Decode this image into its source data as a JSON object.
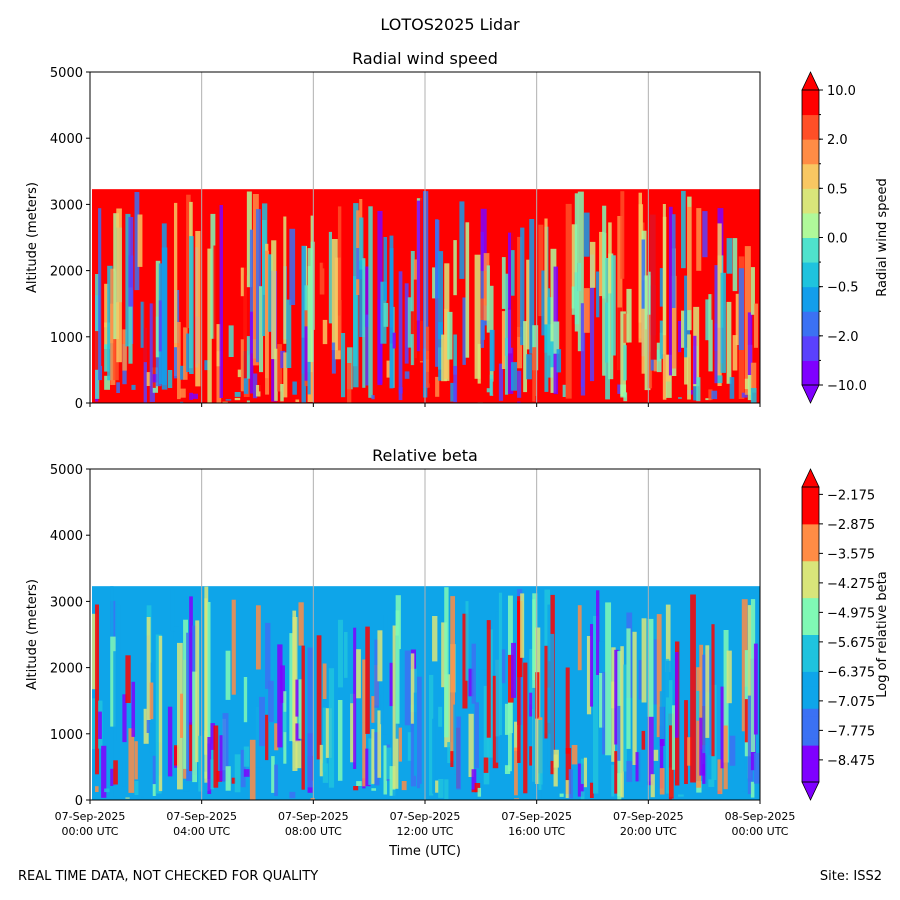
{
  "suptitle": "LOTOS2025 Lidar",
  "footer": {
    "left": "REAL TIME DATA, NOT CHECKED FOR QUALITY",
    "right": "Site: ISS2"
  },
  "chart_data": [
    {
      "type": "heatmap",
      "title": "Radial wind speed",
      "xlabel": "",
      "ylabel": "Altitude (meters)",
      "ylim": [
        0,
        5000
      ],
      "yticks": [
        "0",
        "1000",
        "2000",
        "3000",
        "4000",
        "5000"
      ],
      "xlim_hours": [
        0,
        24
      ],
      "data_top_altitude": 3230,
      "colorbar": {
        "label": "Radial wind speed",
        "levels": [
          -10.0,
          -5.0,
          -2.0,
          -1.0,
          -0.5,
          -0.25,
          0.0,
          0.25,
          0.5,
          1.0,
          2.0,
          5.0,
          10.0
        ],
        "tick_labels": [
          "−10.0",
          "−2.0",
          "−0.5",
          "0.0",
          "0.5",
          "2.0",
          "10.0"
        ],
        "tick_levels": [
          -10.0,
          -2.0,
          -0.5,
          0.0,
          0.5,
          2.0,
          10.0
        ],
        "extend": "both"
      },
      "colors": [
        "#7f00ff",
        "#5a41fd",
        "#3b71f3",
        "#139eeb",
        "#1fc3de",
        "#4fe2cd",
        "#80f9b5",
        "#b0f99a",
        "#d9e57a",
        "#f8c762",
        "#ff8c45",
        "#ff4f27",
        "#ff0000"
      ],
      "dominant_color": "#ff0000"
    },
    {
      "type": "heatmap",
      "title": "Relative beta",
      "xlabel": "Time (UTC)",
      "ylabel": "Altitude (meters)",
      "ylim": [
        0,
        5000
      ],
      "yticks": [
        "0",
        "1000",
        "2000",
        "3000",
        "4000",
        "5000"
      ],
      "xlim_hours": [
        0,
        24
      ],
      "xticks": [
        {
          "hour": 0,
          "date": "07-Sep-2025",
          "time": "00:00 UTC"
        },
        {
          "hour": 4,
          "date": "07-Sep-2025",
          "time": "04:00 UTC"
        },
        {
          "hour": 8,
          "date": "07-Sep-2025",
          "time": "08:00 UTC"
        },
        {
          "hour": 12,
          "date": "07-Sep-2025",
          "time": "12:00 UTC"
        },
        {
          "hour": 16,
          "date": "07-Sep-2025",
          "time": "16:00 UTC"
        },
        {
          "hour": 20,
          "date": "07-Sep-2025",
          "time": "20:00 UTC"
        },
        {
          "hour": 24,
          "date": "08-Sep-2025",
          "time": "00:00 UTC"
        }
      ],
      "data_top_altitude": 3230,
      "colorbar": {
        "label": "Log of relative beta",
        "range": [
          -9.0,
          -2.0
        ],
        "tick_labels": [
          "−2.175",
          "−2.875",
          "−3.575",
          "−4.275",
          "−4.975",
          "−5.675",
          "−6.375",
          "−7.075",
          "−7.775",
          "−8.475"
        ],
        "tick_levels": [
          -2.175,
          -2.875,
          -3.575,
          -4.275,
          -4.975,
          -5.675,
          -6.375,
          -7.075,
          -7.775,
          -8.475
        ],
        "extend": "both"
      },
      "colors": [
        "#7f00ff",
        "#3b71f3",
        "#0ea5e9",
        "#1fc3de",
        "#80f9b5",
        "#d9e57a",
        "#ff8c45",
        "#ff0000"
      ],
      "dominant_color": "#0ea5e9"
    }
  ]
}
